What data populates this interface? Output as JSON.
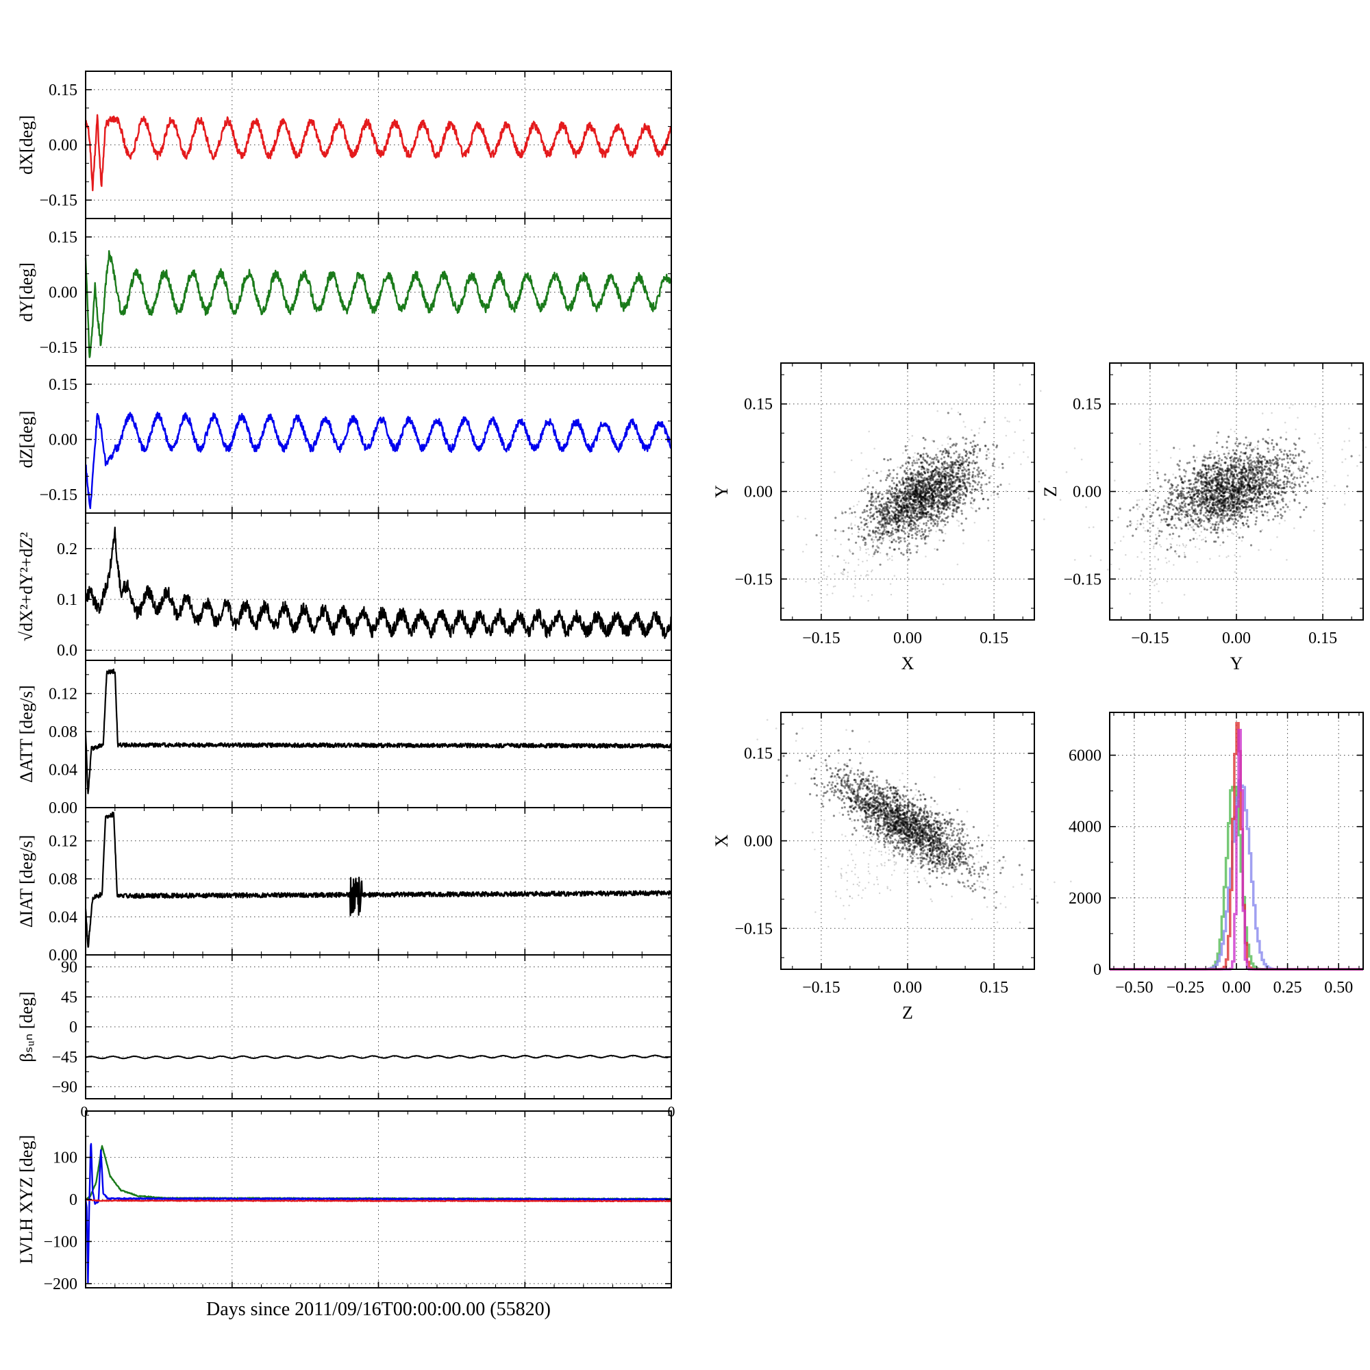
{
  "figure": {
    "xlabel": "Days since 2011/09/16T00:00:00.00 (55820)",
    "background": "#ffffff"
  },
  "chart_data": {
    "type": "line",
    "subtypes": [
      "line",
      "scatter",
      "histogram"
    ],
    "x_axis": {
      "label": "Days since 2011/09/16T00:00:00.00 (55820)",
      "domain": [
        0,
        1
      ]
    },
    "panels": [
      {
        "id": "dx",
        "ylabel": "dX[deg]",
        "ylim": [
          -0.2,
          0.2
        ],
        "yticks": [
          {
            "v": 0.15,
            "label": "0.15"
          },
          {
            "v": 0.0,
            "label": "0.00"
          },
          {
            "v": -0.15,
            "label": "−0.15"
          }
        ],
        "yminor": [
          0.2,
          0.1,
          0.05,
          -0.05,
          -0.1,
          -0.2
        ],
        "xgrid": [
          0.25,
          0.5,
          0.75
        ],
        "xminorStep": 0.05,
        "series": [
          {
            "color": "#e41a1c",
            "lw": 2.4,
            "seed": 101,
            "n": 1500,
            "noise": 0.011,
            "base": [
              [
                0,
                0.02
              ],
              [
                0.006,
                -0.02
              ],
              [
                0.012,
                -0.14
              ],
              [
                0.02,
                0.1
              ],
              [
                0.027,
                -0.06
              ],
              [
                0.034,
                0.09
              ],
              [
                0.05,
                0.02
              ],
              [
                1,
                0.012
              ]
            ],
            "osc": {
              "cycles": 21,
              "amp0": 0.05,
              "amp1": 0.036,
              "phase": 1.0
            }
          }
        ]
      },
      {
        "id": "dy",
        "ylabel": "dY[deg]",
        "ylim": [
          -0.2,
          0.2
        ],
        "yticks": [
          {
            "v": 0.15,
            "label": "0.15"
          },
          {
            "v": 0.0,
            "label": "0.00"
          },
          {
            "v": -0.15,
            "label": "−0.15"
          }
        ],
        "yminor": [
          0.2,
          0.1,
          0.05,
          -0.05,
          -0.1,
          -0.2
        ],
        "xgrid": [
          0.25,
          0.5,
          0.75
        ],
        "xminorStep": 0.05,
        "series": [
          {
            "color": "#1a7a1a",
            "lw": 2.4,
            "seed": 102,
            "n": 1500,
            "noise": 0.012,
            "base": [
              [
                0,
                0.06
              ],
              [
                0.007,
                -0.17
              ],
              [
                0.016,
                0.07
              ],
              [
                0.026,
                -0.13
              ],
              [
                0.04,
                0.05
              ],
              [
                0.06,
                0.0
              ],
              [
                1,
                0.0
              ]
            ],
            "osc": {
              "cycles": 21,
              "amp0": 0.055,
              "amp1": 0.04,
              "phase": 2.6
            }
          }
        ]
      },
      {
        "id": "dz",
        "ylabel": "dZ[deg]",
        "ylim": [
          -0.2,
          0.2
        ],
        "yticks": [
          {
            "v": 0.15,
            "label": "0.15"
          },
          {
            "v": 0.0,
            "label": "0.00"
          },
          {
            "v": -0.15,
            "label": "−0.15"
          }
        ],
        "yminor": [
          0.2,
          0.1,
          0.05,
          -0.05,
          -0.1,
          -0.2
        ],
        "xgrid": [
          0.25,
          0.5,
          0.75
        ],
        "xminorStep": 0.05,
        "series": [
          {
            "color": "#0000ee",
            "lw": 2.4,
            "seed": 103,
            "n": 1500,
            "noise": 0.01,
            "base": [
              [
                0,
                -0.03
              ],
              [
                0.008,
                -0.14
              ],
              [
                0.02,
                0.05
              ],
              [
                0.034,
                -0.1
              ],
              [
                0.05,
                0.02
              ],
              [
                1,
                0.01
              ]
            ],
            "osc": {
              "cycles": 21,
              "amp0": 0.046,
              "amp1": 0.034,
              "phase": 4.1
            }
          }
        ]
      },
      {
        "id": "mag",
        "ylabel": "√dX²+dY²+dZ²",
        "ylim": [
          -0.02,
          0.27
        ],
        "yticks": [
          {
            "v": 0.2,
            "label": "0.2"
          },
          {
            "v": 0.1,
            "label": "0.1"
          },
          {
            "v": 0.0,
            "label": "0.0"
          }
        ],
        "yminor": [
          0.25,
          0.15,
          0.05
        ],
        "xgrid": [
          0.25,
          0.5,
          0.75
        ],
        "xminorStep": 0.05,
        "series": [
          {
            "color": "#000000",
            "lw": 2.2,
            "seed": 104,
            "n": 1600,
            "noise": 0.013,
            "clampMin": 0.003,
            "base": [
              [
                0,
                0.09
              ],
              [
                0.02,
                0.1
              ],
              [
                0.04,
                0.12
              ],
              [
                0.05,
                0.24
              ],
              [
                0.06,
                0.13
              ],
              [
                0.08,
                0.09
              ],
              [
                0.12,
                0.1
              ],
              [
                0.2,
                0.075
              ],
              [
                0.5,
                0.055
              ],
              [
                1,
                0.05
              ]
            ],
            "osc": {
              "cycles": 30,
              "amp0": 0.02,
              "amp1": 0.015,
              "phase": 0.4
            }
          }
        ]
      },
      {
        "id": "datt",
        "ylabel": "ΔATT [deg/s]",
        "ylim": [
          0,
          0.155
        ],
        "yticks": [
          {
            "v": 0.12,
            "label": "0.12"
          },
          {
            "v": 0.08,
            "label": "0.08"
          },
          {
            "v": 0.04,
            "label": "0.04"
          },
          {
            "v": 0.0,
            "label": "0.00"
          }
        ],
        "yminor": [
          0.14,
          0.1,
          0.06,
          0.02
        ],
        "xgrid": [
          0.25,
          0.5,
          0.75
        ],
        "xminorStep": 0.05,
        "series": [
          {
            "color": "#000000",
            "lw": 2.2,
            "seed": 105,
            "n": 1700,
            "noise": 0.0022,
            "clampMin": 0.0,
            "base": [
              [
                0,
                0.08
              ],
              [
                0.004,
                0.012
              ],
              [
                0.01,
                0.062
              ],
              [
                0.03,
                0.066
              ],
              [
                0.036,
                0.142
              ],
              [
                0.05,
                0.144
              ],
              [
                0.055,
                0.066
              ],
              [
                1,
                0.065
              ]
            ]
          }
        ]
      },
      {
        "id": "diat",
        "ylabel": "ΔIAT [deg/s]",
        "ylim": [
          0,
          0.155
        ],
        "yticks": [
          {
            "v": 0.12,
            "label": "0.12"
          },
          {
            "v": 0.08,
            "label": "0.08"
          },
          {
            "v": 0.04,
            "label": "0.04"
          },
          {
            "v": 0.0,
            "label": "0.00"
          }
        ],
        "yminor": [
          0.14,
          0.1,
          0.06,
          0.02
        ],
        "xgrid": [
          0.25,
          0.5,
          0.75
        ],
        "xminorStep": 0.05,
        "series": [
          {
            "color": "#000000",
            "lw": 2.2,
            "seed": 106,
            "n": 1700,
            "noise": 0.0025,
            "clampMin": 0.0,
            "base": [
              [
                0,
                0.05
              ],
              [
                0.004,
                0.006
              ],
              [
                0.012,
                0.06
              ],
              [
                0.028,
                0.064
              ],
              [
                0.034,
                0.146
              ],
              [
                0.048,
                0.148
              ],
              [
                0.054,
                0.062
              ],
              [
                1,
                0.065
              ]
            ],
            "bursts": [
              {
                "x0": 0.452,
                "x1": 0.472,
                "amp": 0.02
              }
            ]
          }
        ]
      },
      {
        "id": "beta",
        "ylabel": "βₛᵤₙ [deg]",
        "ylim": [
          -108,
          108
        ],
        "yticks": [
          {
            "v": 90,
            "label": "90"
          },
          {
            "v": 45,
            "label": "45"
          },
          {
            "v": 0,
            "label": "0"
          },
          {
            "v": -45,
            "label": "−45"
          },
          {
            "v": -90,
            "label": "−90"
          }
        ],
        "yminor": [
          67.5,
          22.5,
          -22.5,
          -67.5
        ],
        "xgrid": [
          0.25,
          0.5,
          0.75
        ],
        "xminorStep": 0.05,
        "corner_labels": [
          "0",
          "0"
        ],
        "series": [
          {
            "color": "#000000",
            "lw": 2.0,
            "seed": 107,
            "n": 1200,
            "noise": 0.25,
            "base": [
              [
                0,
                -46
              ],
              [
                1,
                -44.5
              ]
            ],
            "osc": {
              "cycles": 27,
              "amp0": 1.6,
              "amp1": 1.6,
              "phase": 0
            }
          }
        ]
      },
      {
        "id": "lvlh",
        "ylabel": "LVLH XYZ [deg]",
        "ylim": [
          -210,
          210
        ],
        "yticks": [
          {
            "v": 100,
            "label": "100"
          },
          {
            "v": 0,
            "label": "0"
          },
          {
            "v": -100,
            "label": "−100"
          },
          {
            "v": -200,
            "label": "−200"
          }
        ],
        "yminor": [
          200,
          150,
          50,
          -50,
          -150
        ],
        "xgrid": [
          0.25,
          0.5,
          0.75
        ],
        "xminorStep": 0.05,
        "series": [
          {
            "color": "#1a7a1a",
            "lw": 2.4,
            "seed": 109,
            "n": 1500,
            "noise": 1.2,
            "base": [
              [
                0,
                0
              ],
              [
                0.008,
                8
              ],
              [
                0.018,
                40
              ],
              [
                0.028,
                128
              ],
              [
                0.042,
                55
              ],
              [
                0.06,
                22
              ],
              [
                0.09,
                8
              ],
              [
                0.14,
                3
              ],
              [
                1,
                1
              ]
            ]
          },
          {
            "color": "#0000ee",
            "lw": 2.4,
            "seed": 108,
            "n": 1500,
            "noise": 1.5,
            "base": [
              [
                0,
                0
              ],
              [
                0.002,
                -20
              ],
              [
                0.004,
                -198
              ],
              [
                0.006,
                -30
              ],
              [
                0.009,
                148
              ],
              [
                0.012,
                20
              ],
              [
                0.016,
                -10
              ],
              [
                0.022,
                -5
              ],
              [
                0.026,
                118
              ],
              [
                0.03,
                15
              ],
              [
                0.038,
                2
              ],
              [
                1,
                0
              ]
            ]
          },
          {
            "color": "#e41a1c",
            "lw": 2.2,
            "seed": 110,
            "n": 1500,
            "noise": 1.0,
            "base": [
              [
                0,
                0
              ],
              [
                0.02,
                -3
              ],
              [
                1,
                -4
              ]
            ]
          }
        ]
      }
    ],
    "scatter_panels": [
      {
        "id": "xy",
        "xlabel": "X",
        "ylabel": "Y",
        "xlim": [
          -0.22,
          0.22
        ],
        "ylim": [
          -0.22,
          0.22
        ],
        "xticks": [
          {
            "v": -0.15,
            "label": "−0.15"
          },
          {
            "v": 0.0,
            "label": "0.00"
          },
          {
            "v": 0.15,
            "label": "0.15"
          }
        ],
        "yticks": [
          {
            "v": 0.15,
            "label": "0.15"
          },
          {
            "v": 0.0,
            "label": "0.00"
          },
          {
            "v": -0.15,
            "label": "−0.15"
          }
        ],
        "xminorStep": 0.05,
        "yminorStep": 0.05,
        "cluster": {
          "cx": 0.025,
          "cy": -0.008,
          "rx": 0.055,
          "ry": 0.028,
          "angle": 32,
          "n": 1900,
          "seed": 11
        },
        "halo": {
          "scale": 1.9,
          "n": 260,
          "seed": 13
        },
        "trail": {
          "x0": -0.125,
          "y0": -0.145,
          "x1": -0.005,
          "y1": -0.02,
          "n": 130,
          "spread": 0.03,
          "seed": 12
        }
      },
      {
        "id": "yz",
        "xlabel": "Y",
        "ylabel": "Z",
        "xlim": [
          -0.22,
          0.22
        ],
        "ylim": [
          -0.22,
          0.22
        ],
        "xticks": [
          {
            "v": -0.15,
            "label": "−0.15"
          },
          {
            "v": 0.0,
            "label": "0.00"
          },
          {
            "v": 0.15,
            "label": "0.15"
          }
        ],
        "yticks": [
          {
            "v": 0.15,
            "label": "0.15"
          },
          {
            "v": 0.0,
            "label": "0.00"
          },
          {
            "v": -0.15,
            "label": "−0.15"
          }
        ],
        "xminorStep": 0.05,
        "yminorStep": 0.05,
        "cluster": {
          "cx": -0.01,
          "cy": 0.002,
          "rx": 0.06,
          "ry": 0.03,
          "angle": 18,
          "n": 1900,
          "seed": 14
        },
        "halo": {
          "scale": 1.9,
          "n": 260,
          "seed": 16
        },
        "trail": {
          "x0": -0.16,
          "y0": -0.12,
          "x1": -0.02,
          "y1": -0.005,
          "n": 110,
          "spread": 0.03,
          "seed": 15
        }
      },
      {
        "id": "zx",
        "xlabel": "Z",
        "ylabel": "X",
        "xlim": [
          -0.22,
          0.22
        ],
        "ylim": [
          -0.22,
          0.22
        ],
        "xticks": [
          {
            "v": -0.15,
            "label": "−0.15"
          },
          {
            "v": 0.0,
            "label": "0.00"
          },
          {
            "v": 0.15,
            "label": "0.15"
          }
        ],
        "yticks": [
          {
            "v": 0.15,
            "label": "0.15"
          },
          {
            "v": 0.0,
            "label": "0.00"
          },
          {
            "v": -0.15,
            "label": "−0.15"
          }
        ],
        "xminorStep": 0.05,
        "yminorStep": 0.05,
        "cluster": {
          "cx": -0.008,
          "cy": 0.03,
          "rx": 0.07,
          "ry": 0.022,
          "angle": -33,
          "n": 1900,
          "seed": 17
        },
        "halo": {
          "scale": 1.8,
          "n": 240,
          "seed": 19
        },
        "trail": {
          "x0": -0.105,
          "y0": -0.09,
          "x1": -0.01,
          "y1": 0.01,
          "n": 100,
          "spread": 0.028,
          "seed": 18
        }
      }
    ],
    "histogram": {
      "xlim": [
        -0.62,
        0.62
      ],
      "ylim": [
        0,
        7200
      ],
      "xticks": [
        {
          "v": -0.5,
          "label": "−0.50"
        },
        {
          "v": -0.25,
          "label": "−0.25"
        },
        {
          "v": 0.0,
          "label": "0.00"
        },
        {
          "v": 0.25,
          "label": "0.25"
        },
        {
          "v": 0.5,
          "label": "0.50"
        }
      ],
      "yticks": [
        {
          "v": 0,
          "label": "0"
        },
        {
          "v": 2000,
          "label": "2000"
        },
        {
          "v": 4000,
          "label": "4000"
        },
        {
          "v": 6000,
          "label": "6000"
        }
      ],
      "xminorStep": 0.05,
      "yminorStep": 1000,
      "bins": 120,
      "lw": 3.5,
      "opacity": 0.8,
      "series": [
        {
          "color": "#55bb55",
          "center": -0.012,
          "sigma": 0.034,
          "peak": 5300,
          "seed": 21
        },
        {
          "color": "#8888ee",
          "center": 0.022,
          "sigma": 0.044,
          "peak": 5350,
          "seed": 22
        },
        {
          "color": "#dd3333",
          "center": 0.004,
          "sigma": 0.02,
          "peak": 6900,
          "seed": 23
        },
        {
          "color": "#cc33cc",
          "center": 0.016,
          "sigma": 0.012,
          "peak": 7000,
          "seed": 24
        }
      ]
    }
  }
}
